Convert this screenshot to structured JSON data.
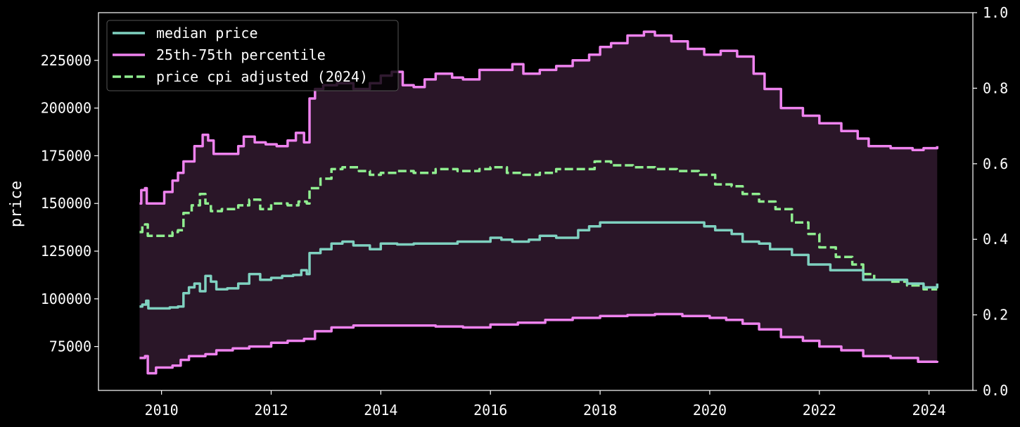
{
  "chart_data": {
    "type": "line",
    "title": "",
    "xlabel": "",
    "ylabel": "price",
    "xlim": [
      2008.85,
      2024.8
    ],
    "ylim": [
      52000,
      250000
    ],
    "y2lim": [
      0.0,
      1.0
    ],
    "x_ticks": [
      2010,
      2012,
      2014,
      2016,
      2018,
      2020,
      2022,
      2024
    ],
    "y_ticks": [
      75000,
      100000,
      125000,
      150000,
      175000,
      200000,
      225000
    ],
    "y2_ticks": [
      "0.0",
      "0.2",
      "0.4",
      "0.6",
      "0.8",
      "1.0"
    ],
    "grid": false,
    "legend_position": "top-left",
    "band_color": "#2a1628",
    "series": [
      {
        "name": "median price",
        "color": "#7fd1c0",
        "style": "solid",
        "points": [
          [
            2009.6,
            96000
          ],
          [
            2009.65,
            97000
          ],
          [
            2009.72,
            99000
          ],
          [
            2009.76,
            95000
          ],
          [
            2010.0,
            95000
          ],
          [
            2010.15,
            95500
          ],
          [
            2010.3,
            96000
          ],
          [
            2010.4,
            103000
          ],
          [
            2010.5,
            106000
          ],
          [
            2010.6,
            108000
          ],
          [
            2010.7,
            104000
          ],
          [
            2010.8,
            112000
          ],
          [
            2010.9,
            109000
          ],
          [
            2011.0,
            105000
          ],
          [
            2011.2,
            105500
          ],
          [
            2011.4,
            108000
          ],
          [
            2011.6,
            113000
          ],
          [
            2011.8,
            110000
          ],
          [
            2012.0,
            111000
          ],
          [
            2012.2,
            112000
          ],
          [
            2012.4,
            112500
          ],
          [
            2012.55,
            115000
          ],
          [
            2012.65,
            113000
          ],
          [
            2012.7,
            124000
          ],
          [
            2012.9,
            126000
          ],
          [
            2013.1,
            129000
          ],
          [
            2013.3,
            130000
          ],
          [
            2013.5,
            128000
          ],
          [
            2013.8,
            126000
          ],
          [
            2014.0,
            129000
          ],
          [
            2014.3,
            128500
          ],
          [
            2014.6,
            129000
          ],
          [
            2015.0,
            129000
          ],
          [
            2015.4,
            130000
          ],
          [
            2015.8,
            130000
          ],
          [
            2016.0,
            132000
          ],
          [
            2016.2,
            131000
          ],
          [
            2016.4,
            130000
          ],
          [
            2016.7,
            131000
          ],
          [
            2016.9,
            133000
          ],
          [
            2017.2,
            132000
          ],
          [
            2017.6,
            136000
          ],
          [
            2017.8,
            138000
          ],
          [
            2018.0,
            140000
          ],
          [
            2018.5,
            140000
          ],
          [
            2019.0,
            140000
          ],
          [
            2019.5,
            140000
          ],
          [
            2019.9,
            138000
          ],
          [
            2020.1,
            136000
          ],
          [
            2020.4,
            134000
          ],
          [
            2020.6,
            130000
          ],
          [
            2020.9,
            129000
          ],
          [
            2021.1,
            126000
          ],
          [
            2021.5,
            123000
          ],
          [
            2021.8,
            118000
          ],
          [
            2022.0,
            118000
          ],
          [
            2022.2,
            115000
          ],
          [
            2022.6,
            115000
          ],
          [
            2022.8,
            110000
          ],
          [
            2023.2,
            110000
          ],
          [
            2023.6,
            108000
          ],
          [
            2023.9,
            106000
          ],
          [
            2024.05,
            106000
          ],
          [
            2024.15,
            108000
          ]
        ]
      },
      {
        "name": "25th-75th percentile",
        "color": "#ee82ee",
        "style": "solid",
        "points": [
          [
            2009.6,
            150000
          ],
          [
            2009.63,
            157000
          ],
          [
            2009.7,
            158000
          ],
          [
            2009.73,
            150000
          ],
          [
            2009.95,
            150000
          ],
          [
            2010.05,
            156000
          ],
          [
            2010.2,
            162000
          ],
          [
            2010.3,
            166000
          ],
          [
            2010.4,
            172000
          ],
          [
            2010.6,
            180000
          ],
          [
            2010.75,
            186000
          ],
          [
            2010.85,
            183000
          ],
          [
            2010.95,
            176000
          ],
          [
            2011.2,
            176000
          ],
          [
            2011.4,
            180000
          ],
          [
            2011.5,
            185000
          ],
          [
            2011.7,
            182000
          ],
          [
            2011.9,
            181000
          ],
          [
            2012.1,
            180000
          ],
          [
            2012.3,
            183000
          ],
          [
            2012.45,
            187000
          ],
          [
            2012.6,
            182000
          ],
          [
            2012.7,
            205000
          ],
          [
            2012.8,
            210000
          ],
          [
            2012.95,
            212000
          ],
          [
            2013.2,
            213000
          ],
          [
            2013.5,
            210000
          ],
          [
            2013.8,
            213000
          ],
          [
            2014.0,
            217000
          ],
          [
            2014.2,
            219000
          ],
          [
            2014.4,
            212000
          ],
          [
            2014.6,
            211000
          ],
          [
            2014.8,
            215000
          ],
          [
            2015.0,
            218000
          ],
          [
            2015.3,
            216000
          ],
          [
            2015.5,
            215000
          ],
          [
            2015.8,
            220000
          ],
          [
            2016.2,
            220000
          ],
          [
            2016.4,
            223000
          ],
          [
            2016.6,
            218000
          ],
          [
            2016.9,
            220000
          ],
          [
            2017.2,
            222000
          ],
          [
            2017.5,
            225000
          ],
          [
            2017.8,
            228000
          ],
          [
            2018.0,
            232000
          ],
          [
            2018.2,
            234000
          ],
          [
            2018.5,
            238000
          ],
          [
            2018.8,
            240000
          ],
          [
            2019.0,
            238000
          ],
          [
            2019.3,
            235000
          ],
          [
            2019.6,
            231000
          ],
          [
            2019.9,
            228000
          ],
          [
            2020.2,
            230000
          ],
          [
            2020.5,
            227000
          ],
          [
            2020.8,
            218000
          ],
          [
            2021.0,
            210000
          ],
          [
            2021.3,
            200000
          ],
          [
            2021.7,
            196000
          ],
          [
            2022.0,
            192000
          ],
          [
            2022.4,
            188000
          ],
          [
            2022.7,
            184000
          ],
          [
            2022.9,
            180000
          ],
          [
            2023.3,
            179000
          ],
          [
            2023.7,
            178000
          ],
          [
            2023.9,
            179000
          ],
          [
            2024.15,
            180000
          ]
        ]
      },
      {
        "name": "",
        "color": "#ee82ee",
        "style": "solid",
        "points": [
          [
            2009.6,
            69000
          ],
          [
            2009.7,
            70000
          ],
          [
            2009.75,
            61000
          ],
          [
            2009.9,
            64000
          ],
          [
            2010.2,
            65000
          ],
          [
            2010.35,
            68000
          ],
          [
            2010.5,
            70000
          ],
          [
            2010.8,
            71000
          ],
          [
            2011.0,
            73000
          ],
          [
            2011.3,
            74000
          ],
          [
            2011.6,
            75000
          ],
          [
            2012.0,
            77000
          ],
          [
            2012.3,
            78000
          ],
          [
            2012.6,
            79000
          ],
          [
            2012.8,
            83000
          ],
          [
            2013.1,
            85000
          ],
          [
            2013.5,
            86000
          ],
          [
            2014.0,
            86000
          ],
          [
            2014.5,
            86000
          ],
          [
            2015.0,
            85500
          ],
          [
            2015.5,
            85000
          ],
          [
            2016.0,
            86500
          ],
          [
            2016.5,
            87500
          ],
          [
            2017.0,
            89000
          ],
          [
            2017.5,
            90000
          ],
          [
            2018.0,
            91000
          ],
          [
            2018.5,
            91500
          ],
          [
            2019.0,
            92000
          ],
          [
            2019.5,
            91000
          ],
          [
            2020.0,
            90000
          ],
          [
            2020.3,
            89000
          ],
          [
            2020.6,
            87000
          ],
          [
            2020.9,
            84000
          ],
          [
            2021.3,
            80000
          ],
          [
            2021.7,
            78000
          ],
          [
            2022.0,
            75000
          ],
          [
            2022.4,
            73000
          ],
          [
            2022.8,
            70000
          ],
          [
            2023.3,
            69000
          ],
          [
            2023.8,
            67000
          ],
          [
            2024.15,
            67500
          ]
        ]
      },
      {
        "name": "price cpi adjusted (2024)",
        "color": "#90ee90",
        "style": "dashed",
        "points": [
          [
            2009.6,
            135000
          ],
          [
            2009.65,
            138000
          ],
          [
            2009.7,
            139000
          ],
          [
            2009.75,
            133000
          ],
          [
            2010.1,
            133000
          ],
          [
            2010.2,
            135000
          ],
          [
            2010.3,
            136000
          ],
          [
            2010.4,
            145000
          ],
          [
            2010.55,
            149000
          ],
          [
            2010.7,
            155000
          ],
          [
            2010.8,
            150000
          ],
          [
            2010.9,
            146000
          ],
          [
            2011.1,
            147000
          ],
          [
            2011.4,
            149000
          ],
          [
            2011.6,
            152000
          ],
          [
            2011.8,
            147000
          ],
          [
            2012.0,
            150000
          ],
          [
            2012.3,
            149000
          ],
          [
            2012.5,
            151000
          ],
          [
            2012.65,
            150000
          ],
          [
            2012.7,
            158000
          ],
          [
            2012.9,
            163000
          ],
          [
            2013.1,
            168000
          ],
          [
            2013.3,
            169000
          ],
          [
            2013.6,
            167000
          ],
          [
            2013.8,
            165000
          ],
          [
            2014.0,
            166000
          ],
          [
            2014.3,
            167000
          ],
          [
            2014.6,
            166000
          ],
          [
            2015.0,
            168000
          ],
          [
            2015.4,
            167000
          ],
          [
            2015.8,
            168000
          ],
          [
            2016.0,
            169000
          ],
          [
            2016.3,
            166000
          ],
          [
            2016.6,
            165000
          ],
          [
            2016.9,
            166000
          ],
          [
            2017.2,
            168000
          ],
          [
            2017.5,
            168000
          ],
          [
            2017.9,
            172000
          ],
          [
            2018.2,
            170000
          ],
          [
            2018.6,
            169000
          ],
          [
            2019.0,
            168000
          ],
          [
            2019.4,
            167000
          ],
          [
            2019.8,
            165000
          ],
          [
            2020.1,
            160000
          ],
          [
            2020.4,
            159000
          ],
          [
            2020.6,
            155000
          ],
          [
            2020.9,
            151000
          ],
          [
            2021.2,
            147000
          ],
          [
            2021.5,
            140000
          ],
          [
            2021.8,
            134000
          ],
          [
            2022.0,
            127000
          ],
          [
            2022.3,
            122000
          ],
          [
            2022.6,
            118000
          ],
          [
            2022.8,
            113000
          ],
          [
            2023.0,
            110000
          ],
          [
            2023.3,
            109000
          ],
          [
            2023.6,
            107000
          ],
          [
            2023.9,
            105000
          ],
          [
            2024.15,
            105000
          ]
        ]
      }
    ]
  }
}
